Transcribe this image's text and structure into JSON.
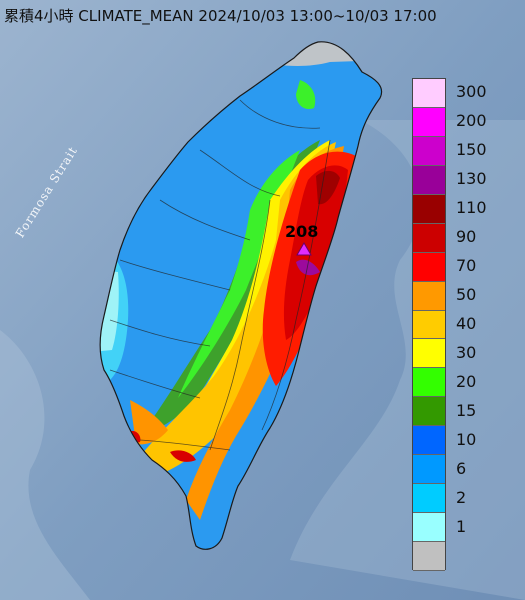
{
  "header": {
    "title": "累積4小時 CLIMATE_MEAN 2024/10/03 13:00~10/03 17:00"
  },
  "map": {
    "strait_label": "Formosa Strait",
    "peak_value": "208"
  },
  "legend": {
    "items": [
      {
        "label": "300",
        "color": "#ffccff"
      },
      {
        "label": "200",
        "color": "#ff00ff"
      },
      {
        "label": "150",
        "color": "#cc00cc"
      },
      {
        "label": "130",
        "color": "#990099"
      },
      {
        "label": "110",
        "color": "#990000"
      },
      {
        "label": "90",
        "color": "#cc0000"
      },
      {
        "label": "70",
        "color": "#ff0000"
      },
      {
        "label": "50",
        "color": "#ff9900"
      },
      {
        "label": "40",
        "color": "#ffcc00"
      },
      {
        "label": "30",
        "color": "#ffff00"
      },
      {
        "label": "20",
        "color": "#33ff00"
      },
      {
        "label": "15",
        "color": "#339900"
      },
      {
        "label": "10",
        "color": "#0066ff"
      },
      {
        "label": "6",
        "color": "#0099ff"
      },
      {
        "label": "2",
        "color": "#00ccff"
      },
      {
        "label": "1",
        "color": "#99ffff"
      },
      {
        "label": "",
        "color": "#c0c0c0"
      }
    ]
  }
}
